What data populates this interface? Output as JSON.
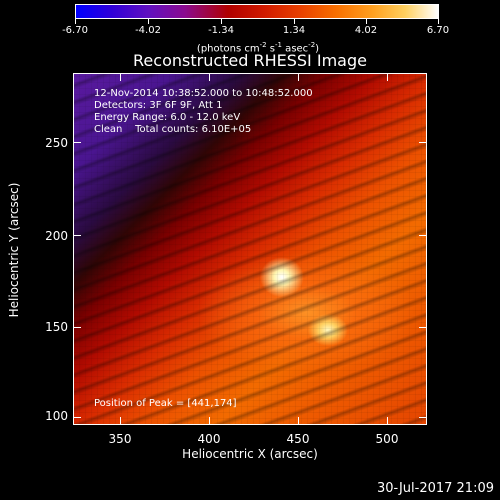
{
  "colorbar": {
    "tick_labels": [
      "-6.70",
      "-4.02",
      "-1.34",
      "1.34",
      "4.02",
      "6.70"
    ],
    "units_prefix": "(photons cm",
    "units_exp1": "-2",
    "units_mid1": " s",
    "units_exp2": "-1",
    "units_mid2": " asec",
    "units_exp3": "-2",
    "units_suffix": ")"
  },
  "title": "Reconstructed RHESSI Image",
  "info": {
    "line1": "12-Nov-2014 10:38:52.000 to 10:48:52.000",
    "line2": "Detectors: 3F 6F 9F, Att 1",
    "line3": "Energy Range: 6.0 - 12.0 keV",
    "line4": "Clean    Total counts: 6.10E+05"
  },
  "peak_text": "Position of Peak = [441,174]",
  "axes": {
    "x_title": "Heliocentric X (arcsec)",
    "y_title": "Heliocentric Y (arcsec)",
    "x_tick_labels": [
      "350",
      "400",
      "450",
      "500"
    ],
    "y_tick_labels": [
      "250",
      "200",
      "150",
      "100"
    ]
  },
  "timestamp": "30-Jul-2017 21:09",
  "colors": {
    "background": "#000000",
    "text": "#ffffff"
  }
}
